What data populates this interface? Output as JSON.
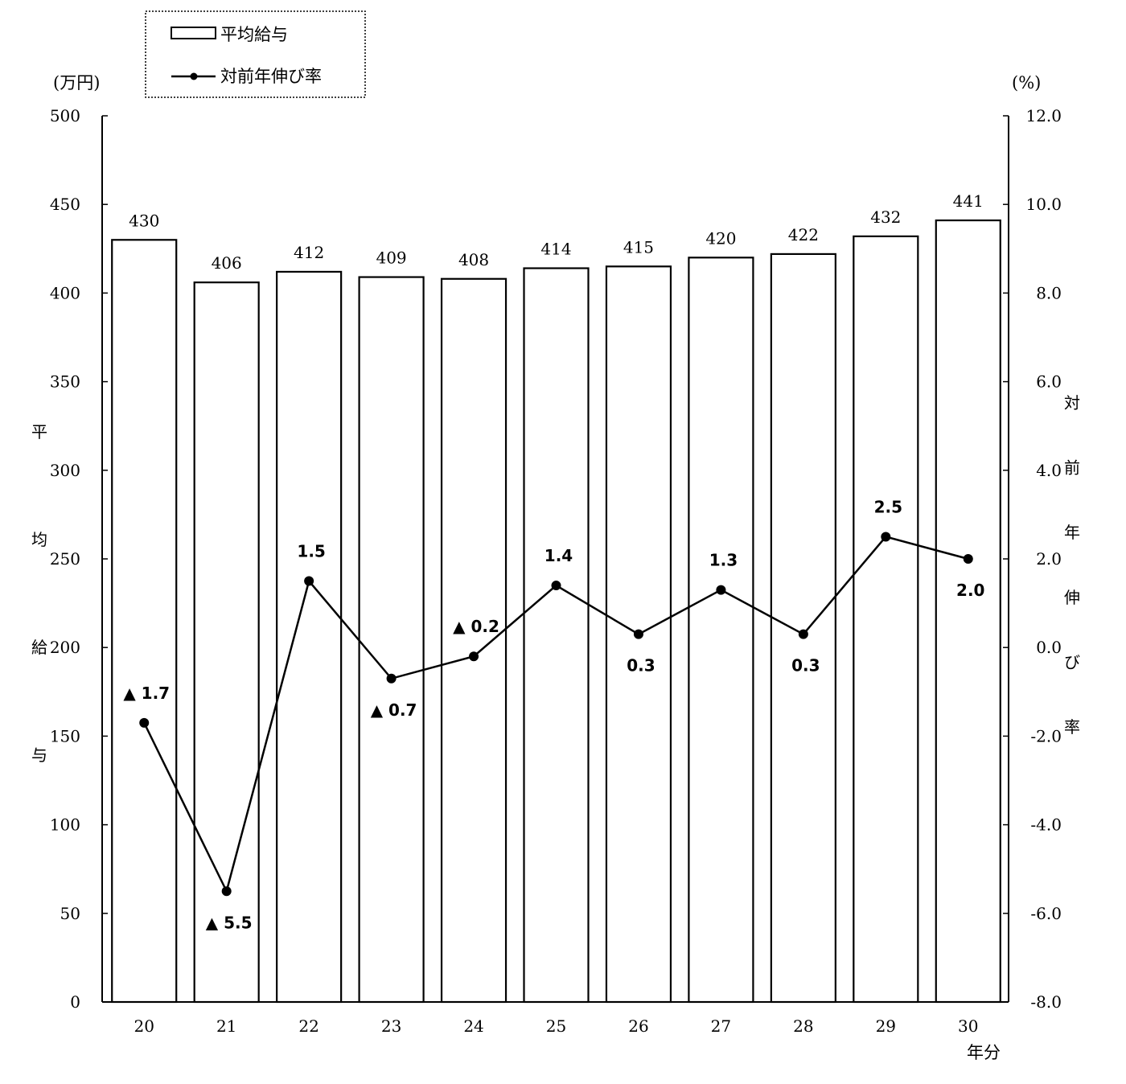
{
  "chart_data": {
    "type": "bar",
    "categories": [
      "20",
      "21",
      "22",
      "23",
      "24",
      "25",
      "26",
      "27",
      "28",
      "29",
      "30"
    ],
    "x_unit_label": "年分",
    "series": [
      {
        "name": "平均給与",
        "type": "bar",
        "axis": "left",
        "values": [
          430,
          406,
          412,
          409,
          408,
          414,
          415,
          420,
          422,
          432,
          441
        ],
        "labels": [
          "430",
          "406",
          "412",
          "409",
          "408",
          "414",
          "415",
          "420",
          "422",
          "432",
          "441"
        ]
      },
      {
        "name": "対前年伸び率",
        "type": "line",
        "axis": "right",
        "values": [
          -1.7,
          -5.5,
          1.5,
          -0.7,
          -0.2,
          1.4,
          0.3,
          1.3,
          0.3,
          2.5,
          2.0
        ],
        "labels": [
          "▲ 1.7",
          "▲ 5.5",
          "1.5",
          "▲ 0.7",
          "▲ 0.2",
          "1.4",
          "0.3",
          "1.3",
          "0.3",
          "2.5",
          "2.0"
        ],
        "label_position": [
          "above",
          "below",
          "above",
          "below",
          "above",
          "above",
          "below",
          "above",
          "below",
          "above",
          "below"
        ]
      }
    ],
    "y_left": {
      "unit": "(万円)",
      "label": "平均給与",
      "ylim": [
        0,
        500
      ],
      "ticks": [
        "0",
        "50",
        "100",
        "150",
        "200",
        "250",
        "300",
        "350",
        "400",
        "450",
        "500"
      ]
    },
    "y_right": {
      "unit": "(%)",
      "label": "対前年伸び率",
      "ylim": [
        -8.0,
        12.0
      ],
      "ticks": [
        "-8.0",
        "-6.0",
        "-4.0",
        "-2.0",
        "0.0",
        "2.0",
        "4.0",
        "6.0",
        "8.0",
        "10.0",
        "12.0"
      ]
    },
    "legend": {
      "placement": "top-left",
      "border": "dotted",
      "entries": [
        "平均給与",
        "対前年伸び率"
      ]
    },
    "grid": false,
    "colors": {
      "bar_fill": "#ffffff",
      "stroke": "#000000"
    }
  }
}
